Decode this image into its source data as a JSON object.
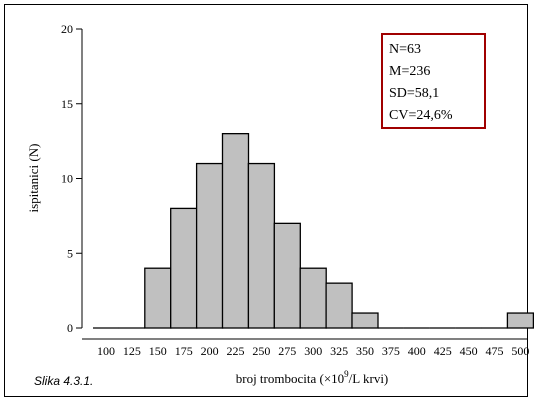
{
  "caption": "Slika 4.3.1.",
  "stats_box": {
    "lines": [
      "N=63",
      "M=236",
      "SD=58,1",
      "CV=24,6%"
    ],
    "border_color": "#a00000"
  },
  "chart_data": {
    "type": "bar",
    "categories": [
      "100",
      "125",
      "150",
      "175",
      "200",
      "225",
      "250",
      "275",
      "300",
      "325",
      "350",
      "375",
      "400",
      "425",
      "450",
      "475",
      "500"
    ],
    "values": [
      0,
      0,
      4,
      8,
      11,
      13,
      11,
      7,
      4,
      3,
      1,
      0,
      0,
      0,
      0,
      0,
      1
    ],
    "title": "",
    "xlabel_prefix": "broj trombocita (",
    "xlabel_times": "×10",
    "xlabel_sup": "9",
    "xlabel_suffix": "/L krvi)",
    "ylabel": "ispitanici (N)",
    "ylim": [
      0,
      20
    ],
    "yticks": [
      0,
      5,
      10,
      15,
      20
    ],
    "grid": false,
    "bar_color": "#c0c0c0",
    "bar_edge_color": "#000000"
  }
}
